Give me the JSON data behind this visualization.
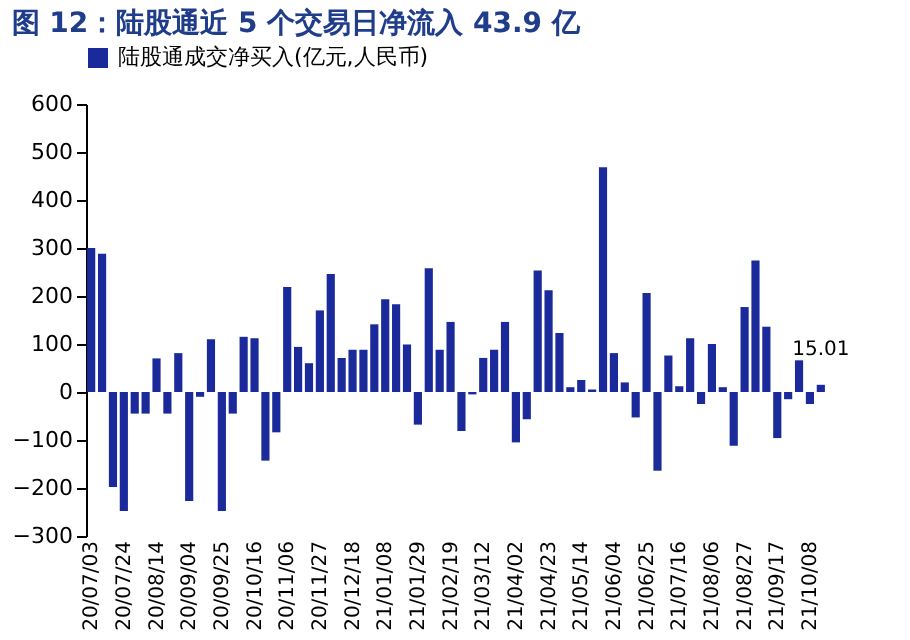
{
  "chart_data": {
    "type": "bar",
    "title": "图 12：陆股通近 5 个交易日净流入 43.9 亿",
    "categories": [
      "20/07/03",
      null,
      null,
      "20/07/24",
      null,
      null,
      "20/08/14",
      null,
      null,
      "20/09/04",
      null,
      null,
      "20/09/25",
      null,
      null,
      "20/10/16",
      null,
      null,
      "20/11/06",
      null,
      null,
      "20/11/27",
      null,
      null,
      "20/12/18",
      null,
      null,
      "21/01/08",
      null,
      null,
      "21/01/29",
      null,
      null,
      "21/02/19",
      null,
      null,
      "21/03/12",
      null,
      null,
      "21/04/02",
      null,
      null,
      "21/04/23",
      null,
      null,
      "21/05/14",
      null,
      null,
      "21/06/04",
      null,
      null,
      "21/06/25",
      null,
      null,
      "21/07/16",
      null,
      null,
      "21/08/06",
      null,
      null,
      "21/08/27",
      null,
      null,
      "21/09/17",
      null,
      null,
      "21/10/08",
      null
    ],
    "series": [
      {
        "name": "陆股通成交净买入(亿元,人民币)",
        "color": "#1a2a9a",
        "values": [
          300,
          288,
          -198,
          -248,
          -45,
          -45,
          70,
          -45,
          81,
          -227,
          -10,
          110,
          -248,
          -45,
          115,
          112,
          -143,
          -84,
          219,
          94,
          60,
          170,
          246,
          71,
          88,
          88,
          141,
          193,
          183,
          99,
          -68,
          258,
          88,
          146,
          -81,
          -5,
          71,
          88,
          146,
          -105,
          -57,
          253,
          212,
          123,
          10,
          25,
          5,
          468,
          81,
          20,
          -53,
          206,
          -164,
          76,
          12,
          112,
          -25,
          100,
          10,
          -112,
          177,
          274,
          136,
          -96,
          -15,
          66,
          -25,
          15.01
        ],
        "value_labels": [
          null,
          null,
          null,
          null,
          null,
          null,
          null,
          null,
          null,
          null,
          null,
          null,
          null,
          null,
          null,
          null,
          null,
          null,
          null,
          null,
          null,
          null,
          null,
          null,
          null,
          null,
          null,
          null,
          null,
          null,
          null,
          null,
          null,
          null,
          null,
          null,
          null,
          null,
          null,
          null,
          null,
          null,
          null,
          null,
          null,
          null,
          null,
          null,
          null,
          null,
          null,
          null,
          null,
          null,
          null,
          null,
          null,
          null,
          null,
          null,
          null,
          null,
          null,
          null,
          null,
          null,
          null,
          "15.01"
        ]
      }
    ],
    "ylim": [
      -300,
      600
    ],
    "yticks": [
      -300,
      -200,
      -100,
      0,
      100,
      200,
      300,
      400,
      500,
      600
    ],
    "grid": false,
    "legend": "top"
  }
}
